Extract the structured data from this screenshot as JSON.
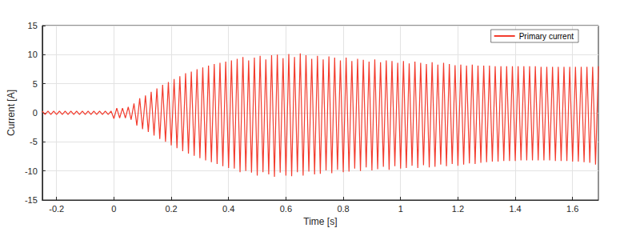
{
  "chart_data": {
    "type": "line",
    "x_label": "Time [s]",
    "y_label": "Current [A]",
    "xlim": [
      -0.25,
      1.69
    ],
    "xticks": [
      -0.2,
      0,
      0.2,
      0.4,
      0.6,
      0.8,
      1,
      1.2,
      1.4,
      1.6
    ],
    "ylim": [
      -15,
      15
    ],
    "yticks": [
      -15,
      -10,
      -5,
      0,
      5,
      10,
      15
    ],
    "grid": true,
    "legend": "upper right",
    "x": [
      -0.25,
      -0.24,
      -0.23,
      -0.22,
      -0.21,
      -0.2,
      -0.19,
      -0.18,
      -0.17,
      -0.16,
      -0.15,
      -0.14,
      -0.13,
      -0.12,
      -0.11,
      -0.1,
      -0.09,
      -0.08,
      -0.07,
      -0.06,
      -0.05,
      -0.04,
      -0.03,
      -0.02,
      -0.01,
      0,
      0.01,
      0.02,
      0.03,
      0.04,
      0.05,
      0.06,
      0.07,
      0.08,
      0.09,
      0.1,
      0.11,
      0.12,
      0.13,
      0.14,
      0.15,
      0.16,
      0.17,
      0.18,
      0.19,
      0.2,
      0.21,
      0.22,
      0.23,
      0.24,
      0.25,
      0.26,
      0.27,
      0.28,
      0.29,
      0.3,
      0.31,
      0.32,
      0.33,
      0.34,
      0.35,
      0.36,
      0.37,
      0.38,
      0.39,
      0.4,
      0.41,
      0.42,
      0.43,
      0.44,
      0.45,
      0.46,
      0.47,
      0.48,
      0.49,
      0.5,
      0.51,
      0.52,
      0.53,
      0.54,
      0.55,
      0.56,
      0.57,
      0.58,
      0.59,
      0.6,
      0.61,
      0.62,
      0.63,
      0.64,
      0.65,
      0.66,
      0.67,
      0.68,
      0.69,
      0.7,
      0.71,
      0.72,
      0.73,
      0.74,
      0.75,
      0.76,
      0.77,
      0.78,
      0.79,
      0.8,
      0.81,
      0.82,
      0.83,
      0.84,
      0.85,
      0.86,
      0.87,
      0.88,
      0.89,
      0.9,
      0.91,
      0.92,
      0.93,
      0.94,
      0.95,
      0.96,
      0.97,
      0.98,
      0.99,
      1,
      1.01,
      1.02,
      1.03,
      1.04,
      1.05,
      1.06,
      1.07,
      1.08,
      1.09,
      1.1,
      1.11,
      1.12,
      1.13,
      1.14,
      1.15,
      1.16,
      1.17,
      1.18,
      1.19,
      1.2,
      1.21,
      1.22,
      1.23,
      1.24,
      1.25,
      1.26,
      1.27,
      1.28,
      1.29,
      1.3,
      1.31,
      1.32,
      1.33,
      1.34,
      1.35,
      1.36,
      1.37,
      1.38,
      1.39,
      1.4,
      1.41,
      1.42,
      1.43,
      1.44,
      1.45,
      1.46,
      1.47,
      1.48,
      1.49,
      1.5,
      1.51,
      1.52,
      1.53,
      1.54,
      1.55,
      1.56,
      1.57,
      1.58,
      1.59,
      1.6,
      1.61,
      1.62,
      1.63,
      1.64,
      1.65,
      1.66,
      1.67,
      1.68,
      1.69
    ],
    "series": [
      {
        "name": "Primary current",
        "color": "#f33c2e",
        "values": [
          0.3,
          -0.3,
          0.3,
          -0.3,
          0.3,
          -0.3,
          0.3,
          -0.3,
          0.3,
          -0.3,
          0.3,
          -0.3,
          0.3,
          -0.3,
          0.3,
          -0.3,
          0.3,
          -0.3,
          0.3,
          -0.3,
          0.3,
          -0.3,
          0.3,
          -0.3,
          0.3,
          -1.0,
          0.8,
          -0.9,
          0.8,
          -0.9,
          1.0,
          -1.2,
          1.6,
          -2.2,
          2.5,
          -2.8,
          3.0,
          -3.3,
          3.6,
          -3.9,
          4.2,
          -4.5,
          4.8,
          -5.0,
          5.3,
          -5.6,
          5.8,
          -6.1,
          6.3,
          -6.6,
          6.8,
          -7.0,
          7.1,
          -7.4,
          7.5,
          -7.8,
          7.8,
          -8.2,
          8.1,
          -8.5,
          8.4,
          -8.8,
          8.6,
          -9.2,
          8.8,
          -9.5,
          9.0,
          -9.6,
          9.3,
          -10.2,
          9.6,
          -10.0,
          9.0,
          -10.3,
          9.5,
          -10.8,
          9.8,
          -10.2,
          9.2,
          -10.6,
          9.9,
          -11.0,
          10.0,
          -10.3,
          9.4,
          -10.8,
          10.1,
          -10.9,
          9.6,
          -10.2,
          10.2,
          -10.8,
          9.9,
          -10.1,
          9.3,
          -10.6,
          9.8,
          -10.5,
          9.2,
          -9.9,
          9.7,
          -10.4,
          9.5,
          -9.8,
          9.0,
          -10.2,
          9.5,
          -10.1,
          8.9,
          -9.6,
          9.3,
          -10.0,
          9.1,
          -9.4,
          8.8,
          -9.9,
          9.2,
          -9.7,
          8.7,
          -9.3,
          9.0,
          -9.8,
          8.9,
          -9.2,
          8.6,
          -9.6,
          8.9,
          -9.5,
          8.5,
          -9.1,
          8.8,
          -9.5,
          8.6,
          -9.0,
          8.4,
          -9.4,
          8.7,
          -9.3,
          8.3,
          -8.9,
          8.6,
          -9.2,
          8.4,
          -8.8,
          8.2,
          -9.1,
          8.3,
          -8.9,
          8.1,
          -8.7,
          8.3,
          -8.8,
          8.1,
          -8.6,
          8.1,
          -8.5,
          8.1,
          -8.4,
          8.0,
          -8.4,
          8.0,
          -8.3,
          8.0,
          -8.3,
          8.0,
          -8.3,
          8.0,
          -8.2,
          8.0,
          -8.2,
          8.0,
          -8.2,
          8.0,
          -8.2,
          7.9,
          -8.2,
          7.9,
          -8.2,
          7.9,
          -8.3,
          7.9,
          -8.3,
          7.9,
          -8.3,
          7.9,
          -8.4,
          7.9,
          -8.4,
          7.9,
          -8.5,
          7.9,
          -8.6,
          7.9,
          -8.9,
          8.0
        ]
      }
    ]
  }
}
